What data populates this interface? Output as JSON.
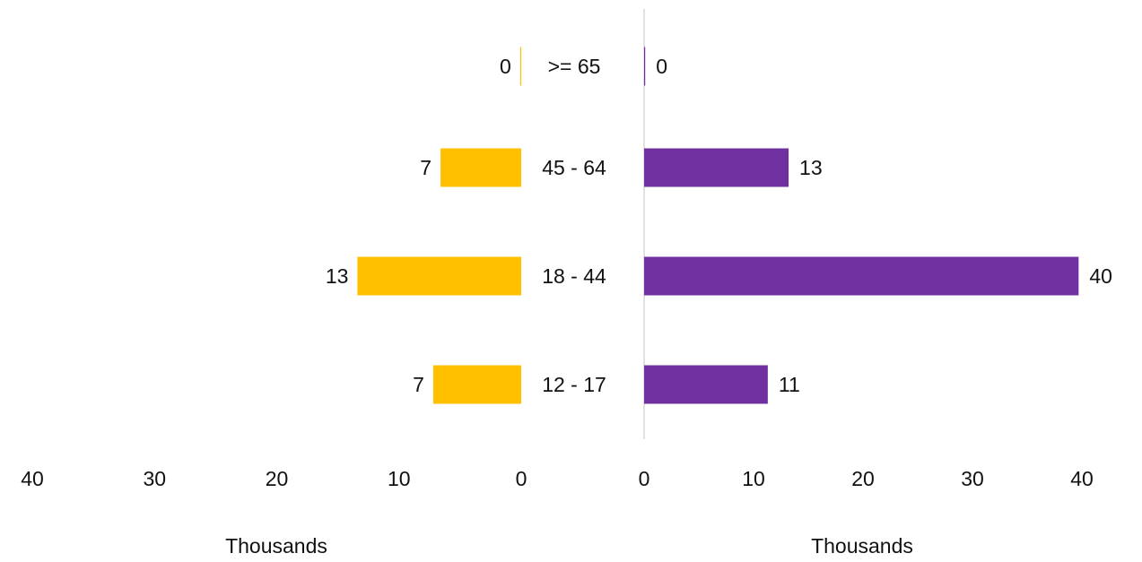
{
  "chart_data": {
    "type": "bar",
    "orientation": "horizontal",
    "layout": "butterfly",
    "categories": [
      ">= 65",
      "45 - 64",
      "18 - 44",
      "12 - 17"
    ],
    "series": [
      {
        "side": "left",
        "values": [
          0,
          6.6,
          13.4,
          7.2
        ],
        "data_labels": [
          "0",
          "7",
          "13",
          "7"
        ],
        "color": "#FFC000"
      },
      {
        "side": "right",
        "values": [
          0,
          13.2,
          39.7,
          11.3
        ],
        "data_labels": [
          "0",
          "13",
          "40",
          "11"
        ],
        "color": "#7030A0"
      }
    ],
    "left_axis": {
      "ticks": [
        "40",
        "30",
        "20",
        "10",
        "0"
      ],
      "range": [
        0,
        40
      ],
      "label": "Thousands",
      "reversed": true
    },
    "right_axis": {
      "ticks": [
        "0",
        "10",
        "20",
        "30",
        "40"
      ],
      "range": [
        0,
        40
      ],
      "label": "Thousands"
    },
    "grid": false,
    "legend": "none"
  }
}
